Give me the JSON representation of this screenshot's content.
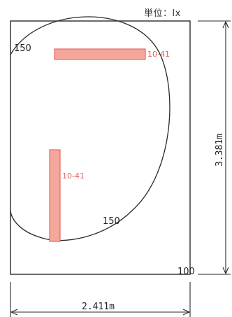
{
  "unit_label": "単位：lx",
  "contours": {
    "outer_label": "150",
    "inner_label": "150",
    "corner_label": "100"
  },
  "fixtures": {
    "horizontal_label": "10-41",
    "vertical_label": "10-41"
  },
  "dimensions": {
    "width": "2.411m",
    "height": "3.381m"
  },
  "colors": {
    "fixture_fill": "#f4a79a",
    "fixture_stroke": "#e56a64",
    "fixture_text": "#e0605a",
    "line": "#2a2a2a"
  }
}
